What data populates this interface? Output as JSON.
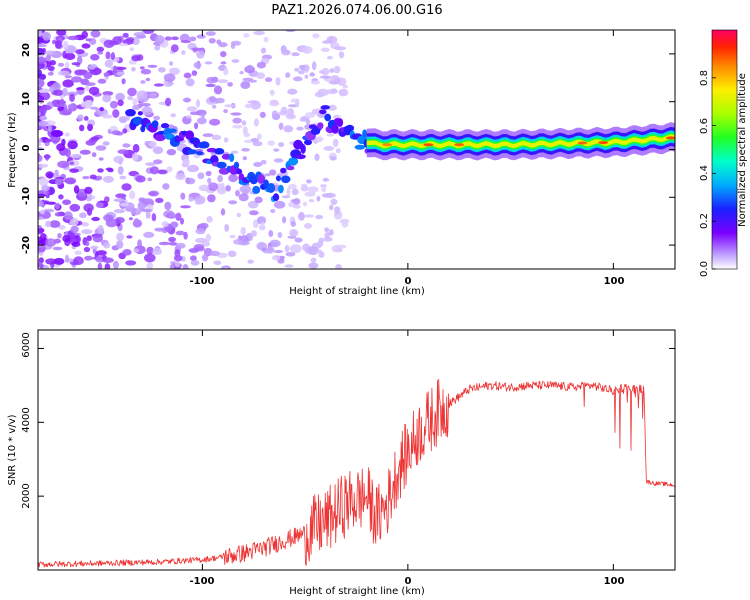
{
  "title": "PAZ1.2026.074.06.00.G16",
  "chart_data": [
    {
      "type": "heatmap",
      "xlabel": "Height of straight line (km)",
      "ylabel": "Frequency (Hz)",
      "xlim": [
        -180,
        130
      ],
      "ylim": [
        -25,
        25
      ],
      "xticks": [
        -100,
        0,
        100
      ],
      "xtick_labels": [
        "-100",
        "0",
        "100"
      ],
      "yticks": [
        -20,
        -10,
        0,
        10,
        20
      ],
      "ytick_labels": [
        "-20",
        "-10",
        "0",
        "10",
        "20"
      ],
      "colorbar": {
        "label": "Normalized spectral amplitude",
        "range": [
          0.0,
          1.0
        ],
        "ticks": [
          0.0,
          0.2,
          0.4,
          0.6,
          0.8
        ],
        "tick_labels": [
          "0.0",
          "0.2",
          "0.4",
          "0.6",
          "0.8"
        ]
      },
      "ridge_track": [
        {
          "x": -130,
          "y": 6
        },
        {
          "x": -100,
          "y": 0
        },
        {
          "x": -80,
          "y": -5
        },
        {
          "x": -65,
          "y": -9
        },
        {
          "x": -50,
          "y": 2
        },
        {
          "x": -40,
          "y": 7
        },
        {
          "x": -30,
          "y": 3
        },
        {
          "x": -15,
          "y": 1
        },
        {
          "x": 0,
          "y": 1
        },
        {
          "x": 50,
          "y": 1
        },
        {
          "x": 100,
          "y": 1.5
        },
        {
          "x": 130,
          "y": 2.5
        }
      ]
    },
    {
      "type": "line",
      "xlabel": "Height of straight line (km)",
      "ylabel": "SNR (10 * v/v)",
      "xlim": [
        -180,
        130
      ],
      "ylim": [
        0,
        6500
      ],
      "xticks": [
        -100,
        0,
        100
      ],
      "xtick_labels": [
        "-100",
        "0",
        "100"
      ],
      "yticks": [
        2000,
        4000,
        6000
      ],
      "ytick_labels": [
        "2000",
        "4000",
        "6000"
      ],
      "series": [
        {
          "name": "SNR",
          "color": "#ee3333",
          "x": [
            -180,
            -150,
            -120,
            -100,
            -90,
            -80,
            -70,
            -60,
            -50,
            -40,
            -30,
            -20,
            -15,
            -10,
            -5,
            0,
            5,
            10,
            15,
            20,
            25,
            30,
            40,
            50,
            60,
            70,
            80,
            90,
            100,
            105,
            110,
            115,
            116,
            120,
            130
          ],
          "y": [
            150,
            180,
            220,
            280,
            350,
            450,
            600,
            800,
            1000,
            1300,
            1800,
            2000,
            1400,
            1800,
            2700,
            3200,
            3700,
            4000,
            4300,
            4500,
            4700,
            4900,
            5000,
            4950,
            5000,
            5000,
            4950,
            5000,
            4850,
            4950,
            4900,
            4900,
            2400,
            2350,
            2300
          ]
        }
      ]
    }
  ]
}
